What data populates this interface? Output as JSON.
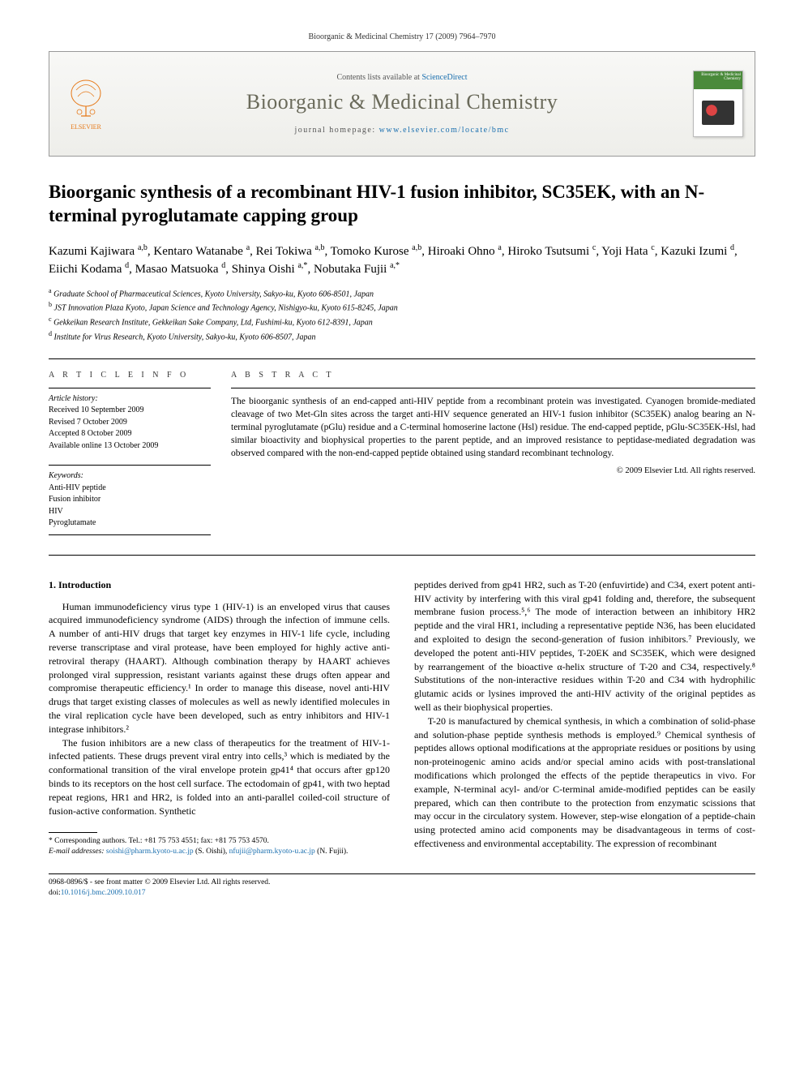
{
  "header_line": "Bioorganic & Medicinal Chemistry 17 (2009) 7964–7970",
  "masthead": {
    "contents_prefix": "Contents lists available at ",
    "contents_link": "ScienceDirect",
    "journal_title": "Bioorganic & Medicinal Chemistry",
    "homepage_prefix": "journal homepage: ",
    "homepage_url": "www.elsevier.com/locate/bmc",
    "publisher_label": "ELSEVIER",
    "cover_label": "Bioorganic & Medicinal Chemistry"
  },
  "article": {
    "title": "Bioorganic synthesis of a recombinant HIV-1 fusion inhibitor, SC35EK, with an N-terminal pyroglutamate capping group",
    "authors_html": "Kazumi Kajiwara ^a,b^, Kentaro Watanabe ^a^, Rei Tokiwa ^a,b^, Tomoko Kurose ^a,b^, Hiroaki Ohno ^a^, Hiroko Tsutsumi ^c^, Yoji Hata ^c^, Kazuki Izumi ^d^, Eiichi Kodama ^d^, Masao Matsuoka ^d^, Shinya Oishi ^a,*^, Nobutaka Fujii ^a,*^",
    "affiliations": [
      "^a^ Graduate School of Pharmaceutical Sciences, Kyoto University, Sakyo-ku, Kyoto 606-8501, Japan",
      "^b^ JST Innovation Plaza Kyoto, Japan Science and Technology Agency, Nishigyo-ku, Kyoto 615-8245, Japan",
      "^c^ Gekkeikan Research Institute, Gekkeikan Sake Company, Ltd, Fushimi-ku, Kyoto 612-8391, Japan",
      "^d^ Institute for Virus Research, Kyoto University, Sakyo-ku, Kyoto 606-8507, Japan"
    ]
  },
  "info": {
    "heading_info": "A R T I C L E   I N F O",
    "history_label": "Article history:",
    "history": [
      "Received 10 September 2009",
      "Revised 7 October 2009",
      "Accepted 8 October 2009",
      "Available online 13 October 2009"
    ],
    "keywords_label": "Keywords:",
    "keywords": [
      "Anti-HIV peptide",
      "Fusion inhibitor",
      "HIV",
      "Pyroglutamate"
    ]
  },
  "abstract": {
    "heading": "A B S T R A C T",
    "text": "The bioorganic synthesis of an end-capped anti-HIV peptide from a recombinant protein was investigated. Cyanogen bromide-mediated cleavage of two Met-Gln sites across the target anti-HIV sequence generated an HIV-1 fusion inhibitor (SC35EK) analog bearing an N-terminal pyroglutamate (pGlu) residue and a C-terminal homoserine lactone (Hsl) residue. The end-capped peptide, pGlu-SC35EK-Hsl, had similar bioactivity and biophysical properties to the parent peptide, and an improved resistance to peptidase-mediated degradation was observed compared with the non-end-capped peptide obtained using standard recombinant technology.",
    "copyright": "© 2009 Elsevier Ltd. All rights reserved."
  },
  "body": {
    "section1_heading": "1. Introduction",
    "p1": "Human immunodeficiency virus type 1 (HIV-1) is an enveloped virus that causes acquired immunodeficiency syndrome (AIDS) through the infection of immune cells. A number of anti-HIV drugs that target key enzymes in HIV-1 life cycle, including reverse transcriptase and viral protease, have been employed for highly active anti-retroviral therapy (HAART). Although combination therapy by HAART achieves prolonged viral suppression, resistant variants against these drugs often appear and compromise therapeutic efficiency.¹ In order to manage this disease, novel anti-HIV drugs that target existing classes of molecules as well as newly identified molecules in the viral replication cycle have been developed, such as entry inhibitors and HIV-1 integrase inhibitors.²",
    "p2": "The fusion inhibitors are a new class of therapeutics for the treatment of HIV-1-infected patients. These drugs prevent viral entry into cells,³ which is mediated by the conformational transition of the viral envelope protein gp41⁴ that occurs after gp120 binds to its receptors on the host cell surface. The ectodomain of gp41, with two heptad repeat regions, HR1 and HR2, is folded into an anti-parallel coiled-coil structure of fusion-active conformation. Synthetic",
    "p3": "peptides derived from gp41 HR2, such as T-20 (enfuvirtide) and C34, exert potent anti-HIV activity by interfering with this viral gp41 folding and, therefore, the subsequent membrane fusion process.⁵,⁶ The mode of interaction between an inhibitory HR2 peptide and the viral HR1, including a representative peptide N36, has been elucidated and exploited to design the second-generation of fusion inhibitors.⁷ Previously, we developed the potent anti-HIV peptides, T-20EK and SC35EK, which were designed by rearrangement of the bioactive α-helix structure of T-20 and C34, respectively.⁸ Substitutions of the non-interactive residues within T-20 and C34 with hydrophilic glutamic acids or lysines improved the anti-HIV activity of the original peptides as well as their biophysical properties.",
    "p4": "T-20 is manufactured by chemical synthesis, in which a combination of solid-phase and solution-phase peptide synthesis methods is employed.⁹ Chemical synthesis of peptides allows optional modifications at the appropriate residues or positions by using non-proteinogenic amino acids and/or special amino acids with post-translational modifications which prolonged the effects of the peptide therapeutics in vivo. For example, N-terminal acyl- and/or C-terminal amide-modified peptides can be easily prepared, which can then contribute to the protection from enzymatic scissions that may occur in the circulatory system. However, step-wise elongation of a peptide-chain using protected amino acid components may be disadvantageous in terms of cost-effectiveness and environmental acceptability. The expression of recombinant"
  },
  "footnotes": {
    "corr": "* Corresponding authors. Tel.: +81 75 753 4551; fax: +81 75 753 4570.",
    "emails_label": "E-mail addresses: ",
    "email1": "soishi@pharm.kyoto-u.ac.jp",
    "email1_who": " (S. Oishi), ",
    "email2": "nfujii@pharm.kyoto-u.ac.jp",
    "email2_who": " (N. Fujii)."
  },
  "bottom": {
    "line1": "0968-0896/$ - see front matter © 2009 Elsevier Ltd. All rights reserved.",
    "doi_label": "doi:",
    "doi": "10.1016/j.bmc.2009.10.017"
  },
  "colors": {
    "link": "#1a6faf",
    "journal_title": "#6a6a5a",
    "elsevier_orange": "#e67817"
  }
}
